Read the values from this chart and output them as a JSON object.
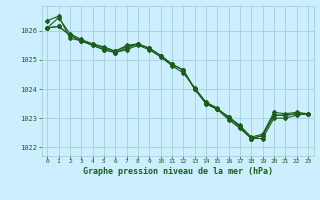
{
  "x": [
    0,
    1,
    2,
    3,
    4,
    5,
    6,
    7,
    8,
    9,
    10,
    11,
    12,
    13,
    14,
    15,
    16,
    17,
    18,
    19,
    20,
    21,
    22,
    23
  ],
  "line1": [
    1026.35,
    1026.5,
    1025.75,
    1025.65,
    1025.55,
    1025.45,
    1025.3,
    1025.5,
    1025.55,
    1025.4,
    1025.15,
    1024.85,
    1024.65,
    1024.0,
    1023.5,
    1023.3,
    1023.05,
    1022.75,
    1022.35,
    1022.45,
    1023.2,
    1023.15,
    1023.2,
    1023.15
  ],
  "line2": [
    1026.1,
    1026.15,
    1025.85,
    1025.65,
    1025.5,
    1025.35,
    1025.25,
    1025.4,
    1025.55,
    1025.4,
    1025.15,
    1024.85,
    1024.65,
    1024.0,
    1023.5,
    1023.3,
    1023.05,
    1022.7,
    1022.3,
    1022.4,
    1023.1,
    1023.1,
    1023.15,
    1023.15
  ],
  "line3": [
    1026.1,
    1026.15,
    1025.85,
    1025.65,
    1025.5,
    1025.35,
    1025.25,
    1025.35,
    1025.5,
    1025.35,
    1025.1,
    1024.8,
    1024.55,
    1024.05,
    1023.55,
    1023.3,
    1022.95,
    1022.65,
    1022.3,
    1022.3,
    1023.0,
    1023.0,
    1023.1,
    1023.15
  ],
  "line4": [
    1026.1,
    1026.45,
    1025.9,
    1025.7,
    1025.55,
    1025.4,
    1025.3,
    1025.45,
    1025.55,
    1025.4,
    1025.15,
    1024.85,
    1024.65,
    1024.0,
    1023.55,
    1023.35,
    1023.0,
    1022.7,
    1022.3,
    1022.4,
    1023.1,
    1023.1,
    1023.15,
    1023.15
  ],
  "bg_color": "#cceeff",
  "grid_color": "#99cccc",
  "line_color": "#1a5e1a",
  "xlabel": "Graphe pression niveau de la mer (hPa)",
  "xlabel_color": "#1a5e1a",
  "tick_color": "#1a5e1a",
  "ylim": [
    1021.7,
    1026.85
  ],
  "yticks": [
    1022,
    1023,
    1024,
    1025,
    1026
  ],
  "xticks": [
    0,
    1,
    2,
    3,
    4,
    5,
    6,
    7,
    8,
    9,
    10,
    11,
    12,
    13,
    14,
    15,
    16,
    17,
    18,
    19,
    20,
    21,
    22,
    23
  ],
  "marker": "D",
  "markersize": 2.0,
  "linewidth": 0.8
}
